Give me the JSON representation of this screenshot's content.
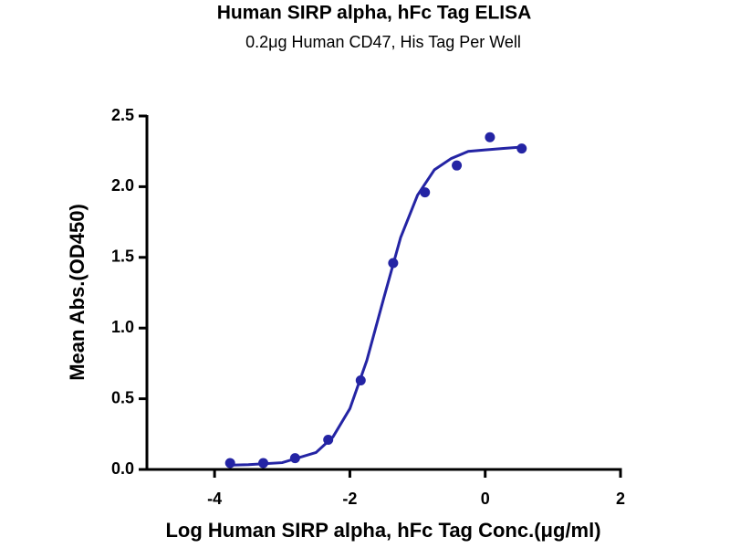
{
  "chart_data": {
    "type": "scatter",
    "title": "Human SIRP alpha, hFc Tag ELISA",
    "subtitle": "0.2μg Human CD47, His Tag Per Well",
    "x_label": "Log Human SIRP alpha, hFc Tag Conc.(μg/ml)",
    "y_label": "Mean Abs.(OD450)",
    "xlim": [
      -5,
      2
    ],
    "ylim": [
      0,
      2.5
    ],
    "xticks": [
      -4,
      -2,
      0,
      2
    ],
    "yticks": [
      {
        "value": 0,
        "label": "0.0"
      },
      {
        "value": 0.5,
        "label": "0.5"
      },
      {
        "value": 1,
        "label": "1.0"
      },
      {
        "value": 1.5,
        "label": "1.5"
      },
      {
        "value": 2,
        "label": "2.0"
      },
      {
        "value": 2.5,
        "label": "2.5"
      }
    ],
    "color": "#2424a4",
    "x": [
      -3.77,
      -3.28,
      -2.81,
      -2.32,
      -1.84,
      -1.36,
      -0.89,
      -0.42,
      0.07,
      0.54
    ],
    "values": [
      0.045,
      0.045,
      0.08,
      0.21,
      0.63,
      1.46,
      1.96,
      2.15,
      2.35,
      2.27
    ],
    "fit": {
      "x": [
        -3.77,
        -3.5,
        -3.0,
        -2.5,
        -2.25,
        -2.0,
        -1.75,
        -1.5,
        -1.25,
        -1.0,
        -0.75,
        -0.5,
        -0.25,
        0,
        0.25,
        0.54
      ],
      "values": [
        0.03,
        0.034,
        0.048,
        0.12,
        0.23,
        0.43,
        0.77,
        1.21,
        1.64,
        1.94,
        2.12,
        2.2,
        2.25,
        2.26,
        2.27,
        2.28
      ]
    }
  }
}
